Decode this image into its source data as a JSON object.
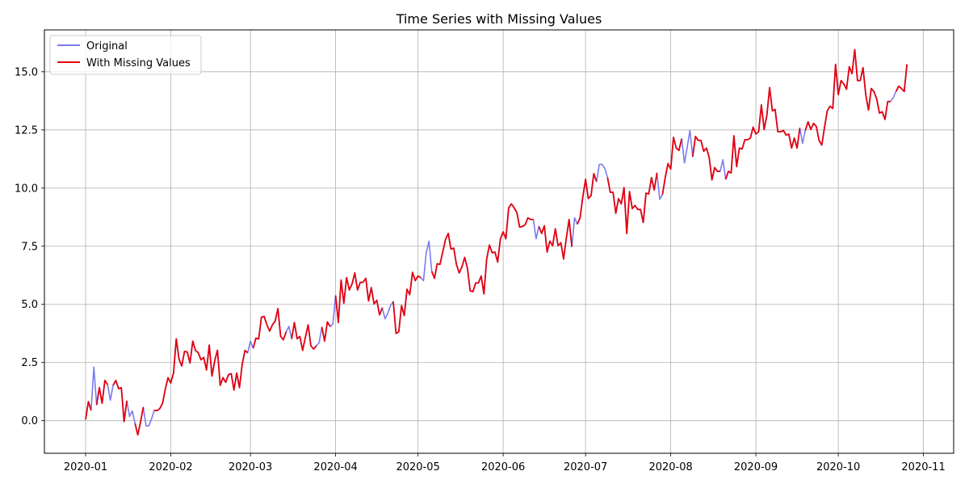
{
  "chart_data": {
    "type": "line",
    "title": "Time Series with Missing Values",
    "xlabel": "",
    "ylabel": "",
    "x_start": "2020-01-01",
    "x_end": "2020-10-27",
    "xlim": [
      "2019-12-17",
      "2020-11-12"
    ],
    "ylim": [
      -1.4,
      16.8
    ],
    "x_ticks": [
      "2020-01-01",
      "2020-02-01",
      "2020-03-01",
      "2020-04-01",
      "2020-05-01",
      "2020-06-01",
      "2020-07-01",
      "2020-08-01",
      "2020-09-01",
      "2020-10-01",
      "2020-11-01"
    ],
    "x_tick_labels": [
      "2020-01",
      "2020-02",
      "2020-03",
      "2020-04",
      "2020-05",
      "2020-06",
      "2020-07",
      "2020-08",
      "2020-09",
      "2020-10",
      "2020-11"
    ],
    "y_ticks": [
      0.0,
      2.5,
      5.0,
      7.5,
      10.0,
      12.5,
      15.0
    ],
    "y_tick_labels": [
      "0.0",
      "2.5",
      "5.0",
      "7.5",
      "10.0",
      "12.5",
      "15.0"
    ],
    "grid": true,
    "legend_position": "top-left",
    "series": [
      {
        "name": "Original",
        "color": "#7b7bf0",
        "values": [
          0.05,
          0.82,
          0.45,
          2.31,
          0.68,
          1.42,
          0.75,
          1.73,
          1.55,
          0.88,
          1.52,
          1.73,
          1.38,
          1.42,
          -0.04,
          0.85,
          0.18,
          0.42,
          -0.12,
          -0.61,
          -0.05,
          0.58,
          -0.22,
          -0.22,
          0.08,
          0.45,
          0.43,
          0.52,
          0.75,
          1.35,
          1.85,
          1.62,
          2.05,
          3.52,
          2.65,
          2.35,
          2.98,
          2.95,
          2.48,
          3.42,
          3.02,
          2.92,
          2.62,
          2.72,
          2.18,
          3.25,
          1.92,
          2.58,
          3.03,
          1.52,
          1.85,
          1.65,
          1.98,
          2.02,
          1.32,
          2.05,
          1.42,
          2.42,
          3.02,
          2.92,
          3.42,
          3.12,
          3.55,
          3.51,
          4.45,
          4.48,
          4.12,
          3.85,
          4.12,
          4.28,
          4.82,
          3.62,
          3.48,
          3.82,
          4.05,
          3.52,
          4.22,
          3.52,
          3.62,
          3.02,
          3.58,
          4.12,
          3.22,
          3.08,
          3.22,
          3.35,
          4.02,
          3.42,
          4.25,
          4.05,
          4.15,
          5.38,
          4.22,
          6.05,
          5.05,
          6.15,
          5.62,
          5.88,
          6.35,
          5.62,
          5.95,
          5.95,
          6.12,
          5.15,
          5.72,
          5.02,
          5.18,
          4.55,
          4.85,
          4.38,
          4.62,
          4.95,
          5.12,
          3.75,
          3.82,
          4.95,
          4.52,
          5.65,
          5.42,
          6.38,
          6.02,
          6.22,
          6.15,
          6.02,
          7.22,
          7.72,
          6.42,
          6.12,
          6.75,
          6.72,
          7.25,
          7.78,
          8.05,
          7.38,
          7.42,
          6.72,
          6.35,
          6.62,
          7.02,
          6.55,
          5.58,
          5.55,
          5.92,
          5.92,
          6.22,
          5.45,
          6.95,
          7.55,
          7.22,
          7.25,
          6.82,
          7.82,
          8.12,
          7.82,
          9.15,
          9.32,
          9.15,
          8.95,
          8.32,
          8.35,
          8.42,
          8.72,
          8.65,
          8.65,
          7.82,
          8.35,
          8.05,
          8.38,
          7.25,
          7.72,
          7.52,
          8.25,
          7.52,
          7.65,
          6.95,
          7.85,
          8.65,
          7.48,
          8.72,
          8.45,
          8.72,
          9.62,
          10.38,
          9.55,
          9.68,
          10.62,
          10.28,
          11.02,
          11.02,
          10.85,
          10.45,
          9.82,
          9.82,
          8.92,
          9.55,
          9.32,
          10.02,
          8.05,
          9.85,
          9.12,
          9.25,
          9.08,
          9.08,
          8.52,
          9.78,
          9.75,
          10.45,
          9.92,
          10.65,
          9.52,
          9.72,
          10.45,
          11.05,
          10.82,
          12.18,
          11.72,
          11.62,
          12.12,
          11.08,
          11.75,
          12.48,
          11.35,
          12.22,
          12.05,
          12.05,
          11.58,
          11.72,
          11.32,
          10.35,
          10.88,
          10.72,
          10.72,
          11.22,
          10.38,
          10.72,
          10.65,
          12.25,
          10.92,
          11.72,
          11.68,
          12.08,
          12.08,
          12.15,
          12.62,
          12.32,
          12.42,
          13.58,
          12.52,
          13.12,
          14.32,
          13.32,
          13.38,
          12.42,
          12.42,
          12.48,
          12.28,
          12.32,
          11.72,
          12.15,
          11.72,
          12.58,
          11.92,
          12.48,
          12.85,
          12.52,
          12.78,
          12.65,
          12.05,
          11.85,
          12.62,
          13.32,
          13.52,
          13.42,
          15.32,
          14.02,
          14.62,
          14.48,
          14.25,
          15.22,
          14.92,
          15.95,
          14.62,
          14.62,
          15.18,
          14.02,
          13.35,
          14.28,
          14.15,
          13.82,
          13.22,
          13.28,
          12.95,
          13.72,
          13.72,
          13.88,
          14.15,
          14.38,
          14.28,
          14.15,
          15.32
        ]
      },
      {
        "name": "With Missing Values",
        "color": "#e3000f",
        "values": [
          0.05,
          0.82,
          0.45,
          null,
          0.68,
          1.42,
          0.75,
          1.73,
          1.55,
          null,
          1.52,
          1.73,
          1.38,
          1.42,
          -0.04,
          0.85,
          null,
          null,
          -0.12,
          -0.61,
          -0.05,
          0.58,
          null,
          null,
          null,
          0.45,
          0.43,
          0.52,
          0.75,
          1.35,
          1.85,
          1.62,
          2.05,
          3.52,
          2.65,
          2.35,
          2.98,
          2.95,
          2.48,
          3.42,
          3.02,
          2.92,
          2.62,
          2.72,
          2.18,
          3.25,
          1.92,
          2.58,
          3.03,
          1.52,
          1.85,
          1.65,
          1.98,
          2.02,
          1.32,
          2.05,
          1.42,
          2.42,
          3.02,
          2.92,
          null,
          3.12,
          3.55,
          3.51,
          4.45,
          4.48,
          4.12,
          3.85,
          4.12,
          4.28,
          4.82,
          3.62,
          3.48,
          3.82,
          null,
          3.52,
          4.22,
          3.52,
          3.62,
          3.02,
          3.58,
          4.12,
          3.22,
          3.08,
          3.22,
          null,
          4.02,
          3.42,
          4.25,
          4.05,
          null,
          5.38,
          4.22,
          6.05,
          5.05,
          6.15,
          5.62,
          5.88,
          6.35,
          5.62,
          5.95,
          5.95,
          6.12,
          5.15,
          5.72,
          5.02,
          5.18,
          4.55,
          4.85,
          null,
          null,
          null,
          5.12,
          3.75,
          3.82,
          4.95,
          4.52,
          5.65,
          5.42,
          6.38,
          6.02,
          6.22,
          6.15,
          null,
          null,
          null,
          6.42,
          6.12,
          6.75,
          6.72,
          7.25,
          7.78,
          8.05,
          7.38,
          7.42,
          6.72,
          6.35,
          6.62,
          7.02,
          6.55,
          5.58,
          5.55,
          5.92,
          5.92,
          6.22,
          5.45,
          6.95,
          7.55,
          7.22,
          7.25,
          6.82,
          7.82,
          8.12,
          7.82,
          9.15,
          9.32,
          9.15,
          8.95,
          8.32,
          8.35,
          8.42,
          8.72,
          8.65,
          8.65,
          null,
          8.35,
          8.05,
          8.38,
          7.25,
          7.72,
          7.52,
          8.25,
          7.52,
          7.65,
          6.95,
          7.85,
          8.65,
          7.48,
          null,
          8.45,
          8.72,
          9.62,
          10.38,
          9.55,
          9.68,
          10.62,
          10.28,
          null,
          null,
          null,
          10.45,
          9.82,
          9.82,
          8.92,
          9.55,
          9.32,
          10.02,
          8.05,
          9.85,
          9.12,
          9.25,
          9.08,
          9.08,
          8.52,
          9.78,
          9.75,
          10.45,
          9.92,
          10.65,
          null,
          9.72,
          10.45,
          11.05,
          10.82,
          12.18,
          11.72,
          11.62,
          12.12,
          null,
          null,
          null,
          11.35,
          12.22,
          12.05,
          12.05,
          11.58,
          11.72,
          11.32,
          10.35,
          10.88,
          10.72,
          10.72,
          null,
          10.38,
          10.72,
          10.65,
          12.25,
          10.92,
          11.72,
          11.68,
          12.08,
          12.08,
          12.15,
          12.62,
          12.32,
          12.42,
          13.58,
          12.52,
          13.12,
          14.32,
          13.32,
          13.38,
          12.42,
          12.42,
          12.48,
          12.28,
          12.32,
          11.72,
          12.15,
          11.72,
          12.58,
          null,
          12.48,
          12.85,
          12.52,
          12.78,
          12.65,
          12.05,
          11.85,
          12.62,
          13.32,
          13.52,
          13.42,
          15.32,
          14.02,
          14.62,
          14.48,
          14.25,
          15.22,
          14.92,
          15.95,
          14.62,
          14.62,
          15.18,
          14.02,
          13.35,
          14.28,
          14.15,
          13.82,
          13.22,
          13.28,
          12.95,
          13.72,
          13.72,
          null,
          14.15,
          14.38,
          14.28,
          14.15,
          15.32
        ]
      }
    ]
  }
}
